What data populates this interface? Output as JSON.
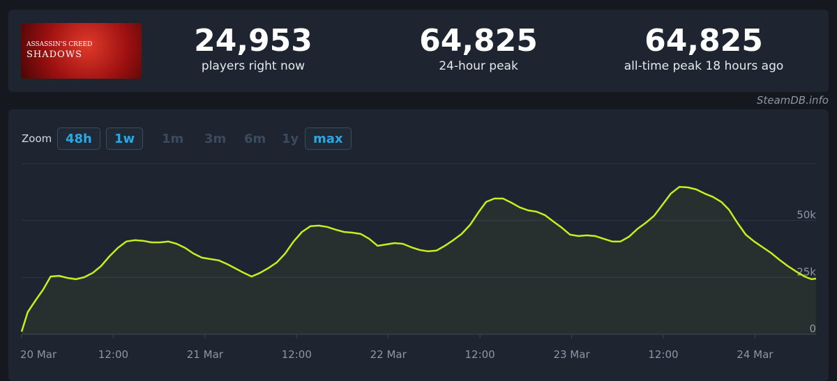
{
  "header": {
    "image_text": [
      "ASSASSIN'S CREED",
      "SHADOWS"
    ],
    "stats": [
      {
        "value": "24,953",
        "label": "players right now"
      },
      {
        "value": "64,825",
        "label": "24-hour peak"
      },
      {
        "value": "64,825",
        "label": "all-time peak 18 hours ago"
      }
    ]
  },
  "source": "SteamDB.info",
  "zoom": {
    "label": "Zoom",
    "buttons": [
      {
        "text": "48h",
        "active": true
      },
      {
        "text": "1w",
        "active": true
      },
      {
        "text": "1m",
        "active": false
      },
      {
        "text": "3m",
        "active": false
      },
      {
        "text": "6m",
        "active": false
      },
      {
        "text": "1y",
        "active": false
      },
      {
        "text": "max",
        "active": true
      }
    ]
  },
  "chart_data": {
    "type": "line",
    "fill": true,
    "color": "#c8ef1d",
    "grid": true,
    "x": [
      0,
      0.8,
      1.9,
      2.8,
      3.8,
      4.9,
      6.0,
      7.1,
      8.2,
      9.3,
      10.4,
      11.5,
      12.6,
      13.7,
      14.8,
      15.9,
      17.0,
      18.1,
      19.2,
      20.3,
      21.4,
      22.5,
      23.6,
      24.7,
      25.8,
      26.9,
      27.9,
      29.1,
      30.1,
      31.2,
      32.3,
      33.4,
      34.5,
      35.6,
      36.7,
      37.8,
      38.9,
      40.0,
      41.1,
      42.2,
      43.3,
      44.4,
      45.5,
      46.6,
      47.7,
      48.8,
      49.9,
      51.0,
      52.1,
      53.2,
      54.3,
      55.4,
      56.5,
      57.6,
      58.7,
      59.8,
      60.8,
      61.9,
      63.0,
      64.1,
      65.2,
      66.3,
      67.4,
      68.5,
      69.6,
      70.7,
      71.8,
      72.9,
      74.0,
      75.1,
      76.2,
      77.3,
      78.4,
      79.5,
      80.6,
      81.7,
      82.8,
      83.9,
      85.0,
      86.1,
      87.2,
      88.3,
      89.4,
      90.5,
      91.6,
      92.6,
      93.7,
      94.8,
      95.9,
      97.0,
      98.1,
      99.2,
      100.3,
      101.4,
      102.5,
      103.4,
      104.0
    ],
    "values": [
      1200,
      9800,
      15300,
      19600,
      25400,
      25700,
      24800,
      24200,
      25100,
      27000,
      30000,
      34300,
      38000,
      40800,
      41400,
      41100,
      40400,
      40400,
      40800,
      39800,
      38000,
      35500,
      33700,
      33100,
      32500,
      30900,
      29100,
      27000,
      25400,
      27000,
      29100,
      31600,
      35500,
      40800,
      45000,
      47500,
      47800,
      47200,
      46000,
      45000,
      44700,
      44100,
      42000,
      38900,
      39500,
      40100,
      39800,
      38300,
      37100,
      36500,
      36800,
      38900,
      41400,
      44100,
      48100,
      53600,
      58200,
      59700,
      59700,
      57900,
      55800,
      54500,
      53900,
      52400,
      49600,
      46900,
      43800,
      43200,
      43500,
      43200,
      42000,
      40800,
      40800,
      42900,
      46300,
      49000,
      52100,
      57000,
      61900,
      64800,
      64600,
      63700,
      61900,
      60400,
      58200,
      54800,
      49000,
      43800,
      40800,
      38300,
      35800,
      32800,
      30000,
      27600,
      25400,
      24200,
      24500
    ],
    "xlim": [
      0,
      104
    ],
    "ylim": [
      0,
      75000
    ],
    "xticks": [
      {
        "value": 0,
        "label": "20 Mar"
      },
      {
        "value": 12,
        "label": "12:00"
      },
      {
        "value": 24,
        "label": "21 Mar"
      },
      {
        "value": 36,
        "label": "12:00"
      },
      {
        "value": 48,
        "label": "22 Mar"
      },
      {
        "value": 60,
        "label": "12:00"
      },
      {
        "value": 72,
        "label": "23 Mar"
      },
      {
        "value": 84,
        "label": "12:00"
      },
      {
        "value": 96,
        "label": "24 Mar"
      }
    ],
    "yticks": [
      0,
      {
        "value": 25000,
        "label": "25k"
      },
      {
        "value": 50000,
        "label": "50k"
      }
    ]
  }
}
